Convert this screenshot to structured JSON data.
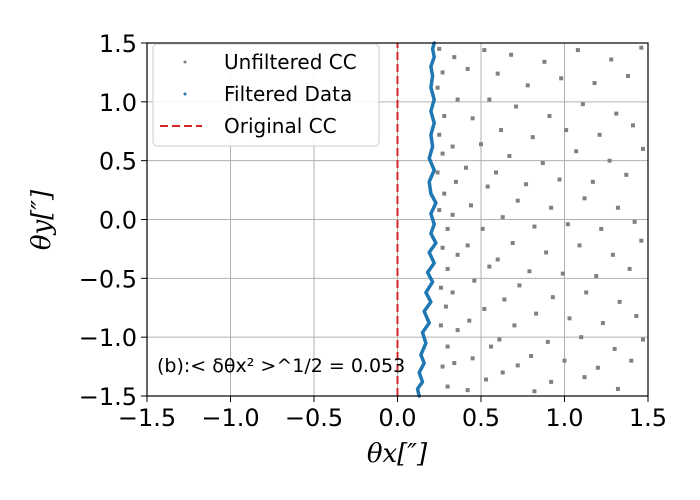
{
  "chart_data": {
    "type": "scatter",
    "xlabel": "θx[″]",
    "ylabel": "θy[″]",
    "xlim": [
      -1.5,
      1.5
    ],
    "ylim": [
      -1.5,
      1.5
    ],
    "xticks": [
      "−1.5",
      "−1.0",
      "−0.5",
      "0.0",
      "0.5",
      "1.0",
      "1.5"
    ],
    "yticks": [
      "−1.5",
      "−1.0",
      "−0.5",
      "0.0",
      "0.5",
      "1.0",
      "1.5"
    ],
    "grid": true,
    "legend_position": "top-left",
    "legend": [
      "Unfiltered CC",
      "Filtered Data",
      "Original CC"
    ],
    "annotation": "(b):< δθx² >^1/2 = 0.053",
    "annotation_position": "bottom-left",
    "colors": {
      "unfiltered": "#808080",
      "filtered": "#1f77b4",
      "original": "#d62728",
      "grid": "#b0b0b0"
    },
    "series": [
      {
        "name": "Original CC",
        "style": "dashed-line",
        "points": [
          [
            0.0,
            -1.5
          ],
          [
            0.0,
            1.5
          ]
        ]
      },
      {
        "name": "Filtered Data",
        "style": "line",
        "points": [
          [
            0.13,
            -1.5
          ],
          [
            0.12,
            -1.44
          ],
          [
            0.15,
            -1.38
          ],
          [
            0.13,
            -1.3
          ],
          [
            0.16,
            -1.22
          ],
          [
            0.14,
            -1.15
          ],
          [
            0.17,
            -1.05
          ],
          [
            0.15,
            -0.96
          ],
          [
            0.19,
            -0.88
          ],
          [
            0.16,
            -0.78
          ],
          [
            0.2,
            -0.7
          ],
          [
            0.17,
            -0.62
          ],
          [
            0.21,
            -0.53
          ],
          [
            0.18,
            -0.45
          ],
          [
            0.22,
            -0.37
          ],
          [
            0.19,
            -0.28
          ],
          [
            0.23,
            -0.2
          ],
          [
            0.2,
            -0.12
          ],
          [
            0.22,
            -0.04
          ],
          [
            0.2,
            0.05
          ],
          [
            0.23,
            0.14
          ],
          [
            0.2,
            0.22
          ],
          [
            0.19,
            0.32
          ],
          [
            0.22,
            0.42
          ],
          [
            0.19,
            0.52
          ],
          [
            0.21,
            0.62
          ],
          [
            0.2,
            0.72
          ],
          [
            0.22,
            0.82
          ],
          [
            0.2,
            0.92
          ],
          [
            0.22,
            1.02
          ],
          [
            0.2,
            1.12
          ],
          [
            0.21,
            1.22
          ],
          [
            0.2,
            1.3
          ],
          [
            0.22,
            1.38
          ],
          [
            0.21,
            1.45
          ],
          [
            0.22,
            1.5
          ]
        ]
      },
      {
        "name": "Unfiltered CC",
        "style": "dots",
        "points": [
          [
            0.25,
            1.45
          ],
          [
            0.27,
            1.25
          ],
          [
            0.24,
            1.12
          ],
          [
            0.28,
            0.88
          ],
          [
            0.25,
            0.72
          ],
          [
            0.27,
            0.56
          ],
          [
            0.24,
            0.4
          ],
          [
            0.28,
            0.22
          ],
          [
            0.25,
            0.08
          ],
          [
            0.3,
            -0.08
          ],
          [
            0.27,
            -0.24
          ],
          [
            0.3,
            -0.42
          ],
          [
            0.26,
            -0.58
          ],
          [
            0.29,
            -0.74
          ],
          [
            0.26,
            -0.9
          ],
          [
            0.3,
            -1.08
          ],
          [
            0.27,
            -1.25
          ],
          [
            0.3,
            -1.42
          ],
          [
            0.34,
            1.38
          ],
          [
            0.36,
            1.02
          ],
          [
            0.33,
            0.62
          ],
          [
            0.35,
            0.32
          ],
          [
            0.33,
            0.04
          ],
          [
            0.36,
            -0.3
          ],
          [
            0.33,
            -0.62
          ],
          [
            0.36,
            -0.94
          ],
          [
            0.34,
            -1.22
          ],
          [
            0.42,
            1.28
          ],
          [
            0.45,
            0.86
          ],
          [
            0.41,
            0.44
          ],
          [
            0.44,
            0.12
          ],
          [
            0.42,
            -0.22
          ],
          [
            0.46,
            -0.52
          ],
          [
            0.43,
            -0.86
          ],
          [
            0.45,
            -1.18
          ],
          [
            0.42,
            -1.45
          ],
          [
            0.52,
            1.44
          ],
          [
            0.55,
            1.02
          ],
          [
            0.5,
            0.64
          ],
          [
            0.54,
            0.28
          ],
          [
            0.51,
            -0.08
          ],
          [
            0.55,
            -0.4
          ],
          [
            0.52,
            -0.76
          ],
          [
            0.56,
            -1.08
          ],
          [
            0.53,
            -1.36
          ],
          [
            0.6,
            1.24
          ],
          [
            0.62,
            0.76
          ],
          [
            0.59,
            0.4
          ],
          [
            0.63,
            0.02
          ],
          [
            0.6,
            -0.34
          ],
          [
            0.64,
            -0.68
          ],
          [
            0.61,
            -1.02
          ],
          [
            0.63,
            -1.3
          ],
          [
            0.68,
            1.4
          ],
          [
            0.71,
            0.96
          ],
          [
            0.67,
            0.54
          ],
          [
            0.72,
            0.16
          ],
          [
            0.69,
            -0.2
          ],
          [
            0.73,
            -0.56
          ],
          [
            0.7,
            -0.9
          ],
          [
            0.72,
            -1.24
          ],
          [
            0.78,
            1.14
          ],
          [
            0.81,
            0.7
          ],
          [
            0.77,
            0.3
          ],
          [
            0.82,
            -0.06
          ],
          [
            0.79,
            -0.44
          ],
          [
            0.83,
            -0.8
          ],
          [
            0.8,
            -1.16
          ],
          [
            0.82,
            -1.46
          ],
          [
            0.88,
            1.34
          ],
          [
            0.91,
            0.88
          ],
          [
            0.87,
            0.48
          ],
          [
            0.92,
            0.1
          ],
          [
            0.89,
            -0.28
          ],
          [
            0.93,
            -0.66
          ],
          [
            0.9,
            -1.04
          ],
          [
            0.92,
            -1.38
          ],
          [
            0.98,
            1.2
          ],
          [
            1.01,
            0.76
          ],
          [
            0.97,
            0.34
          ],
          [
            1.02,
            -0.04
          ],
          [
            0.99,
            -0.46
          ],
          [
            1.03,
            -0.84
          ],
          [
            1.0,
            -1.2
          ],
          [
            1.08,
            1.44
          ],
          [
            1.11,
            0.98
          ],
          [
            1.07,
            0.58
          ],
          [
            1.12,
            0.18
          ],
          [
            1.09,
            -0.22
          ],
          [
            1.13,
            -0.62
          ],
          [
            1.1,
            -1.0
          ],
          [
            1.12,
            -1.34
          ],
          [
            1.18,
            1.16
          ],
          [
            1.21,
            0.72
          ],
          [
            1.17,
            0.32
          ],
          [
            1.22,
            -0.08
          ],
          [
            1.19,
            -0.48
          ],
          [
            1.23,
            -0.88
          ],
          [
            1.2,
            -1.26
          ],
          [
            1.28,
            1.36
          ],
          [
            1.31,
            0.9
          ],
          [
            1.27,
            0.5
          ],
          [
            1.32,
            0.1
          ],
          [
            1.29,
            -0.3
          ],
          [
            1.33,
            -0.7
          ],
          [
            1.3,
            -1.1
          ],
          [
            1.32,
            -1.44
          ],
          [
            1.38,
            1.22
          ],
          [
            1.41,
            0.8
          ],
          [
            1.37,
            0.38
          ],
          [
            1.42,
            -0.02
          ],
          [
            1.39,
            -0.42
          ],
          [
            1.43,
            -0.82
          ],
          [
            1.4,
            -1.2
          ],
          [
            1.46,
            1.46
          ],
          [
            1.47,
            0.6
          ],
          [
            1.46,
            -0.18
          ],
          [
            1.47,
            -1.02
          ]
        ]
      }
    ]
  }
}
